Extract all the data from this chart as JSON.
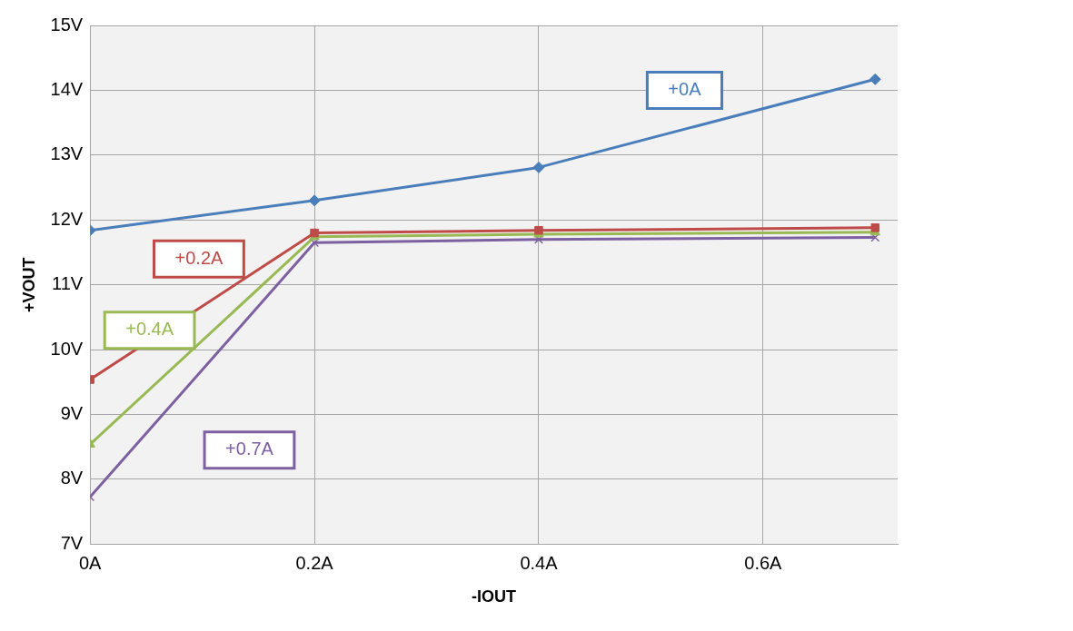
{
  "chart_data": {
    "type": "line",
    "xlabel": "-IOUT",
    "ylabel": "+VOUT",
    "x": [
      0,
      0.2,
      0.4,
      0.7
    ],
    "xlim": [
      0,
      0.72
    ],
    "xticks": [
      {
        "value": 0,
        "label": "0A"
      },
      {
        "value": 0.2,
        "label": "0.2A"
      },
      {
        "value": 0.4,
        "label": "0.4A"
      },
      {
        "value": 0.6,
        "label": "0.6A"
      }
    ],
    "ylim": [
      7,
      15
    ],
    "yticks": [
      {
        "value": 7,
        "label": "7V"
      },
      {
        "value": 8,
        "label": "8V"
      },
      {
        "value": 9,
        "label": "9V"
      },
      {
        "value": 10,
        "label": "10V"
      },
      {
        "value": 11,
        "label": "11V"
      },
      {
        "value": 12,
        "label": "12V"
      },
      {
        "value": 13,
        "label": "13V"
      },
      {
        "value": 14,
        "label": "14V"
      },
      {
        "value": 15,
        "label": "15V"
      }
    ],
    "grid": true,
    "legend": false,
    "series": [
      {
        "name": "+0A",
        "color": "#4a7ebb",
        "marker": "diamond",
        "values": [
          11.84,
          12.3,
          12.81,
          14.17
        ]
      },
      {
        "name": "+0.2A",
        "color": "#be4b48",
        "marker": "square",
        "values": [
          9.54,
          11.8,
          11.84,
          11.88
        ]
      },
      {
        "name": "+0.4A",
        "color": "#98b954",
        "marker": "triangle",
        "values": [
          8.54,
          11.74,
          11.78,
          11.81
        ]
      },
      {
        "name": "+0.7A",
        "color": "#7d60a0",
        "marker": "cross",
        "values": [
          7.73,
          11.65,
          11.7,
          11.73
        ]
      }
    ]
  }
}
